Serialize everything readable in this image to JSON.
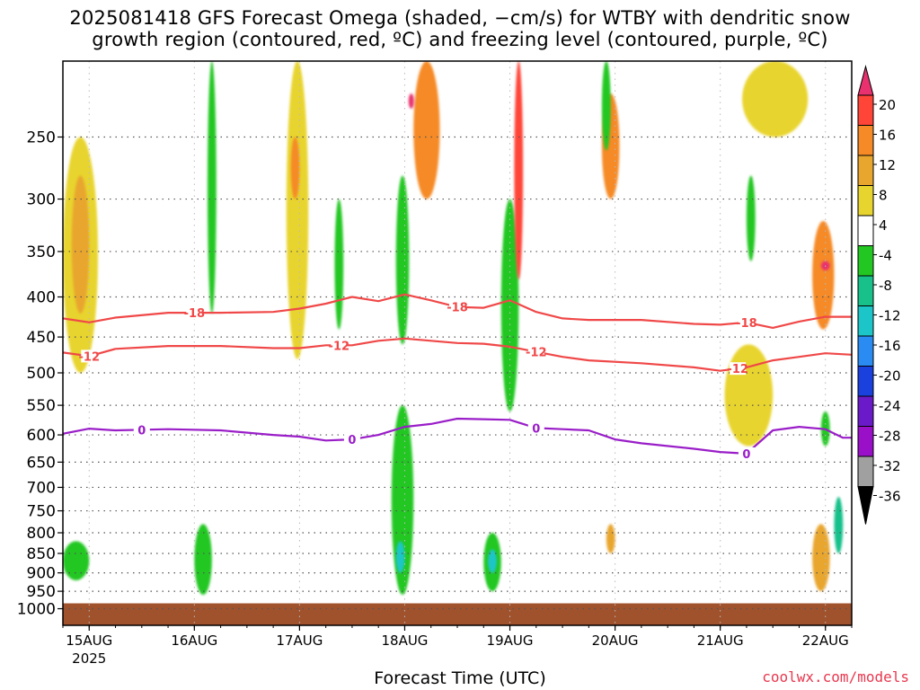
{
  "title_line1": "2025081418 GFS Forecast Omega (shaded, −cm/s) for WTBY with dendritic snow",
  "title_line2": "growth region (contoured, red, ºC) and freezing level (contoured, purple, ºC)",
  "credit": "coolwx.com/models",
  "chart_data": {
    "type": "heatmap",
    "title": "2025081418 GFS Forecast Omega (shaded, −cm/s) for WTBY with dendritic snow growth region (contoured, red, ºC) and freezing level (contoured, purple, ºC)",
    "xlabel": "Forecast Time (UTC)",
    "ylabel": "",
    "x_range_hours": [
      0,
      180
    ],
    "y_axis": "pressure (hPa), log scale, inverted",
    "ylim": [
      1050,
      200
    ],
    "y_ticks": [
      250,
      300,
      350,
      400,
      450,
      500,
      550,
      600,
      650,
      700,
      750,
      800,
      850,
      900,
      950,
      1000
    ],
    "x_ticks": [
      {
        "h": 6,
        "label": "15AUG",
        "sub": "2025"
      },
      {
        "h": 30,
        "label": "16AUG",
        "sub": ""
      },
      {
        "h": 54,
        "label": "17AUG",
        "sub": ""
      },
      {
        "h": 78,
        "label": "18AUG",
        "sub": ""
      },
      {
        "h": 102,
        "label": "19AUG",
        "sub": ""
      },
      {
        "h": 126,
        "label": "20AUG",
        "sub": ""
      },
      {
        "h": 150,
        "label": "21AUG",
        "sub": ""
      },
      {
        "h": 174,
        "label": "22AUG",
        "sub": ""
      }
    ],
    "grid": true,
    "colorbar": {
      "labels": [
        "20",
        "16",
        "12",
        "8",
        "4",
        "-4",
        "-8",
        "-12",
        "-16",
        "-20",
        "-24",
        "-28",
        "-32",
        "-36"
      ],
      "colors": [
        "#e8316e",
        "#ff4438",
        "#f58a26",
        "#e8a62f",
        "#e8d42e",
        "#ffffff",
        "#22c722",
        "#18c08a",
        "#1cc6c8",
        "#2a8cf2",
        "#1a40dd",
        "#6a1ac8",
        "#9a10c8",
        "#a0a0a0",
        "#000000"
      ]
    },
    "contours": [
      {
        "value": -18,
        "label": "-18",
        "color": "#f04848",
        "x": [
          0,
          6,
          12,
          24,
          36,
          48,
          54,
          60,
          66,
          72,
          78,
          84,
          90,
          96,
          102,
          108,
          114,
          120,
          132,
          144,
          150,
          156,
          162,
          168,
          174,
          180
        ],
        "y": [
          426,
          431,
          425,
          419,
          419,
          418,
          414,
          408,
          400,
          405,
          397,
          404,
          412,
          413,
          404,
          418,
          426,
          428,
          428,
          433,
          434,
          431,
          438,
          430,
          424,
          424
        ],
        "label_x": [
          30,
          90,
          156
        ]
      },
      {
        "value": -12,
        "label": "-12",
        "color": "#f04848",
        "x": [
          0,
          6,
          12,
          24,
          36,
          48,
          54,
          60,
          66,
          72,
          78,
          84,
          90,
          96,
          102,
          108,
          114,
          120,
          132,
          144,
          150,
          156,
          162,
          168,
          174,
          180
        ],
        "y": [
          471,
          476,
          466,
          462,
          462,
          465,
          465,
          461,
          461,
          455,
          452,
          455,
          458,
          459,
          463,
          470,
          477,
          482,
          486,
          492,
          497,
          492,
          482,
          477,
          472,
          474
        ],
        "label_x": [
          6,
          63,
          108,
          154
        ]
      },
      {
        "value": 0,
        "label": "0",
        "color": "#9a1ec8",
        "x": [
          0,
          6,
          12,
          24,
          36,
          48,
          54,
          60,
          66,
          72,
          78,
          84,
          90,
          96,
          102,
          108,
          114,
          120,
          126,
          132,
          144,
          150,
          156,
          162,
          168,
          174,
          178,
          180
        ],
        "y": [
          598,
          589,
          592,
          590,
          592,
          600,
          603,
          610,
          608,
          600,
          586,
          581,
          572,
          573,
          574,
          588,
          590,
          592,
          608,
          615,
          625,
          631,
          634,
          592,
          586,
          590,
          605,
          605
        ],
        "label_x": [
          18,
          66,
          108,
          156
        ]
      }
    ],
    "shaded_features": [
      {
        "type": "positive",
        "level": 4,
        "x_hours": [
          0,
          8
        ],
        "p_range": [
          250,
          500
        ]
      },
      {
        "type": "positive",
        "level": 8,
        "x_hours": [
          2,
          6
        ],
        "p_range": [
          280,
          420
        ]
      },
      {
        "type": "negative",
        "level": -8,
        "x_hours": [
          0,
          6
        ],
        "p_range": [
          820,
          920
        ]
      },
      {
        "type": "negative",
        "level": -8,
        "x_hours": [
          30,
          34
        ],
        "p_range": [
          780,
          960
        ]
      },
      {
        "type": "negative",
        "level": -8,
        "x_hours": [
          33,
          35
        ],
        "p_range": [
          200,
          420
        ]
      },
      {
        "type": "positive",
        "level": 4,
        "x_hours": [
          51,
          56
        ],
        "p_range": [
          200,
          480
        ]
      },
      {
        "type": "positive",
        "level": 12,
        "x_hours": [
          52,
          54
        ],
        "p_range": [
          250,
          300
        ]
      },
      {
        "type": "negative",
        "level": -8,
        "x_hours": [
          62,
          64
        ],
        "p_range": [
          300,
          440
        ]
      },
      {
        "type": "negative",
        "level": -8,
        "x_hours": [
          75,
          80
        ],
        "p_range": [
          550,
          960
        ]
      },
      {
        "type": "negative",
        "level": -16,
        "x_hours": [
          76,
          78
        ],
        "p_range": [
          820,
          900
        ]
      },
      {
        "type": "negative",
        "level": -8,
        "x_hours": [
          76,
          79
        ],
        "p_range": [
          280,
          460
        ]
      },
      {
        "type": "positive",
        "level": 12,
        "x_hours": [
          80,
          86
        ],
        "p_range": [
          200,
          300
        ]
      },
      {
        "type": "positive",
        "level": 20,
        "x_hours": [
          79,
          80
        ],
        "p_range": [
          220,
          230
        ]
      },
      {
        "type": "negative",
        "level": -8,
        "x_hours": [
          96,
          100
        ],
        "p_range": [
          800,
          950
        ]
      },
      {
        "type": "negative",
        "level": -16,
        "x_hours": [
          97,
          99
        ],
        "p_range": [
          840,
          900
        ]
      },
      {
        "type": "negative",
        "level": -8,
        "x_hours": [
          100,
          104
        ],
        "p_range": [
          300,
          560
        ]
      },
      {
        "type": "positive",
        "level": 16,
        "x_hours": [
          103,
          105
        ],
        "p_range": [
          200,
          380
        ]
      },
      {
        "type": "positive",
        "level": 12,
        "x_hours": [
          123,
          127
        ],
        "p_range": [
          220,
          300
        ]
      },
      {
        "type": "positive",
        "level": 8,
        "x_hours": [
          124,
          126
        ],
        "p_range": [
          780,
          850
        ]
      },
      {
        "type": "negative",
        "level": -8,
        "x_hours": [
          123,
          125
        ],
        "p_range": [
          200,
          260
        ]
      },
      {
        "type": "negative",
        "level": -8,
        "x_hours": [
          156,
          158
        ],
        "p_range": [
          280,
          360
        ]
      },
      {
        "type": "positive",
        "level": 4,
        "x_hours": [
          151,
          162
        ],
        "p_range": [
          460,
          620
        ]
      },
      {
        "type": "positive",
        "level": 4,
        "x_hours": [
          155,
          170
        ],
        "p_range": [
          200,
          250
        ]
      },
      {
        "type": "positive",
        "level": 12,
        "x_hours": [
          171,
          176
        ],
        "p_range": [
          320,
          440
        ]
      },
      {
        "type": "positive",
        "level": 20,
        "x_hours": [
          173,
          175
        ],
        "p_range": [
          360,
          370
        ]
      },
      {
        "type": "positive",
        "level": 8,
        "x_hours": [
          171,
          175
        ],
        "p_range": [
          780,
          950
        ]
      },
      {
        "type": "negative",
        "level": -12,
        "x_hours": [
          176,
          178
        ],
        "p_range": [
          720,
          850
        ]
      },
      {
        "type": "negative",
        "level": -8,
        "x_hours": [
          173,
          175
        ],
        "p_range": [
          560,
          620
        ]
      }
    ],
    "ground": {
      "color": "#a0522d",
      "p_top": 1000
    }
  }
}
